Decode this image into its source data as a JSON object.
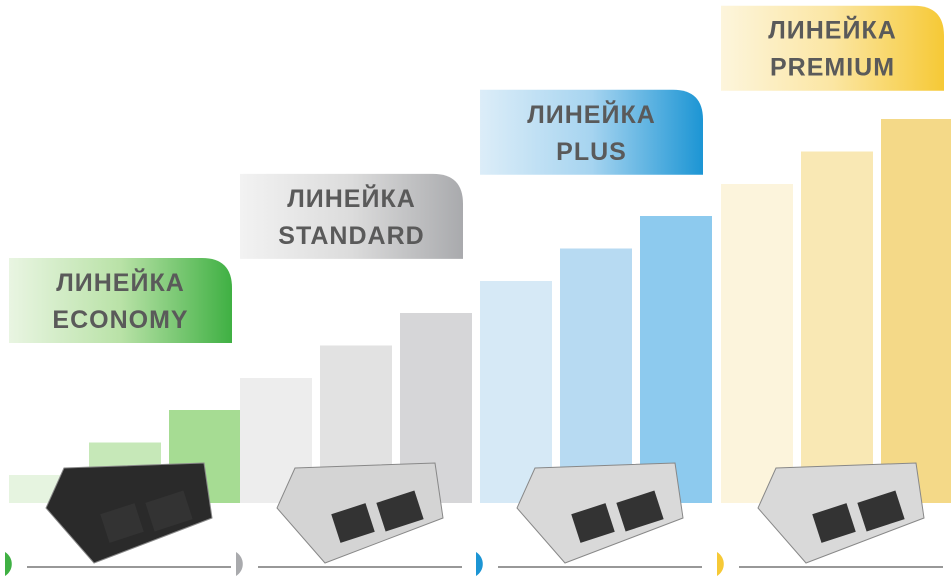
{
  "lines": [
    {
      "prefix": "ЛИНЕЙКА",
      "name": "ECONOMY"
    },
    {
      "prefix": "ЛИНЕЙКА",
      "name": "STANDARD"
    },
    {
      "prefix": "ЛИНЕЙКА",
      "name": "PLUS"
    },
    {
      "prefix": "ЛИНЕЙКА",
      "name": "PREMIUM"
    }
  ]
}
